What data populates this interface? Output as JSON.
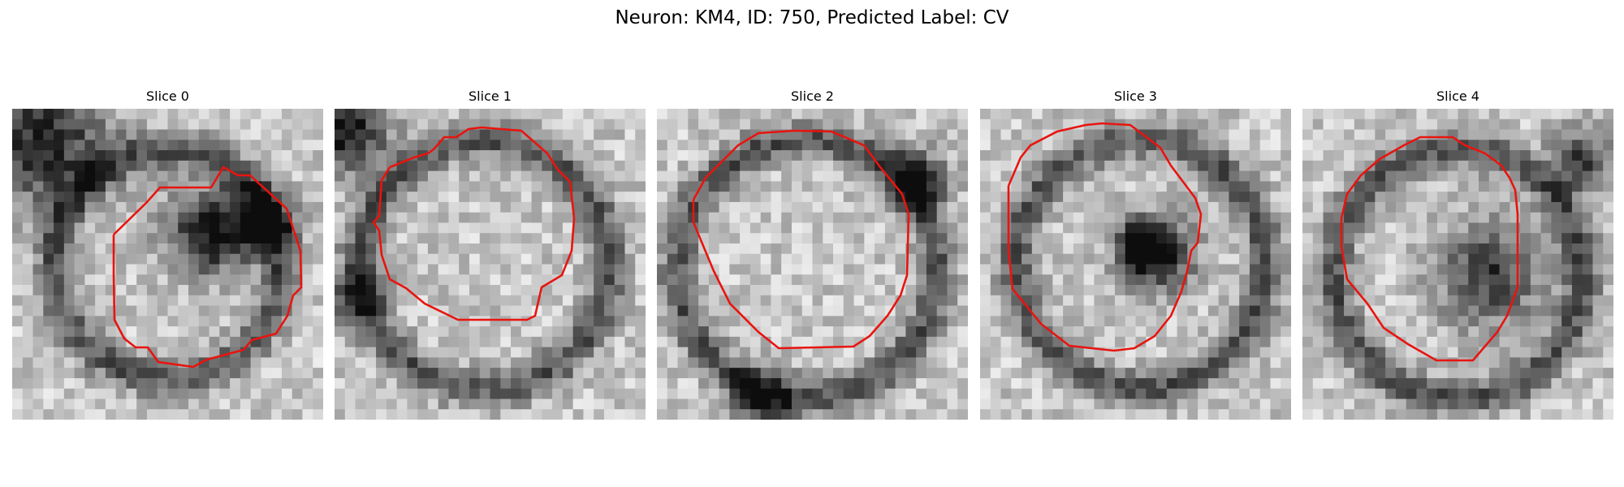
{
  "figure": {
    "title": "Neuron: KM4, ID: 750, Predicted Label: CV"
  },
  "panels": [
    {
      "title": "Slice 0",
      "contour_color": "#e8140f"
    },
    {
      "title": "Slice 1",
      "contour_color": "#e8140f"
    },
    {
      "title": "Slice 2",
      "contour_color": "#e8140f"
    },
    {
      "title": "Slice 3",
      "contour_color": "#e8140f"
    },
    {
      "title": "Slice 4",
      "contour_color": "#e8140f"
    }
  ]
}
